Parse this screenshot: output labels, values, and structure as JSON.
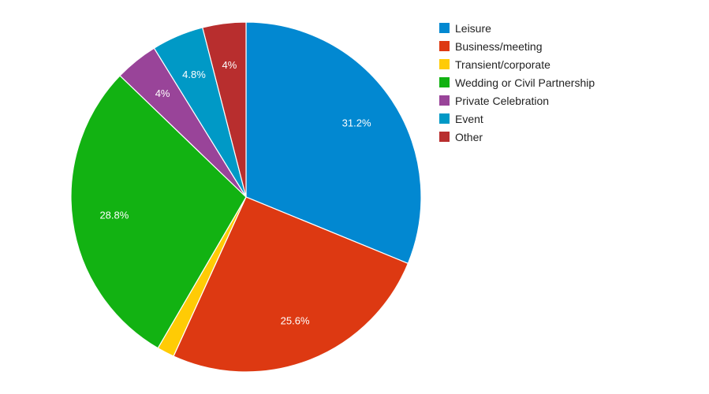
{
  "chart_data": {
    "type": "pie",
    "legend_position": "right",
    "start_angle_deg": 0,
    "direction": "clockwise",
    "slices": [
      {
        "label": "Leisure",
        "value": 31.2,
        "display": "31.2%",
        "color": "#0288d1"
      },
      {
        "label": "Business/meeting",
        "value": 25.6,
        "display": "25.6%",
        "color": "#dd3912"
      },
      {
        "label": "Transient/corporate",
        "value": 1.6,
        "display": "",
        "color": "#ffcb05"
      },
      {
        "label": "Wedding or Civil Partnership",
        "value": 28.8,
        "display": "28.8%",
        "color": "#12b212"
      },
      {
        "label": "Private Celebration",
        "value": 4.0,
        "display": "4%",
        "color": "#994499"
      },
      {
        "label": "Event",
        "value": 4.8,
        "display": "4.8%",
        "color": "#0099c6"
      },
      {
        "label": "Other",
        "value": 4.0,
        "display": "4%",
        "color": "#b82e2e"
      }
    ]
  }
}
